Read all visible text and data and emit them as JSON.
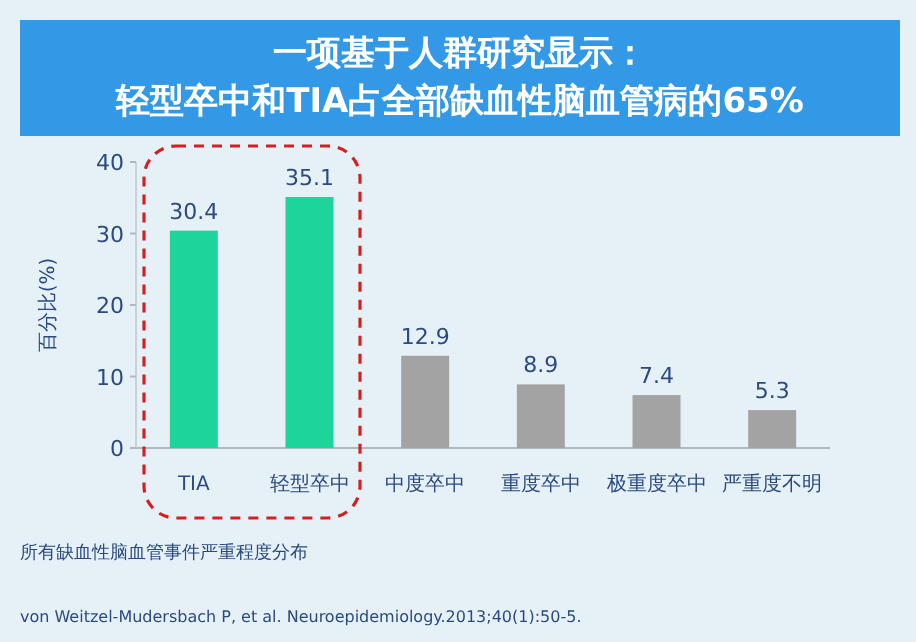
{
  "chart_data": {
    "type": "bar",
    "title": "一项基于人群研究显示：",
    "subtitle": "轻型卒中和TIA占全部缺血性脑血管病的65%",
    "ylabel": "百分比(%)",
    "categories": [
      "TIA",
      "轻型卒中",
      "中度卒中",
      "重度卒中",
      "极重度卒中",
      "严重度不明"
    ],
    "values": [
      30.4,
      35.1,
      12.9,
      8.9,
      7.4,
      5.3
    ],
    "colors": [
      "#1dd49a",
      "#1dd49a",
      "#a3a3a3",
      "#a3a3a3",
      "#a3a3a3",
      "#a3a3a3"
    ],
    "ylim": [
      0,
      40
    ],
    "yticks": [
      0,
      10,
      20,
      30,
      40
    ],
    "data_labels": true,
    "grid": false,
    "annotations": [
      "所有缺血性脑血管事件严重程度分布",
      "von Weitzel-Mudersbach P, et al. Neuroepidemiology.2013;40(1):50-5."
    ]
  }
}
